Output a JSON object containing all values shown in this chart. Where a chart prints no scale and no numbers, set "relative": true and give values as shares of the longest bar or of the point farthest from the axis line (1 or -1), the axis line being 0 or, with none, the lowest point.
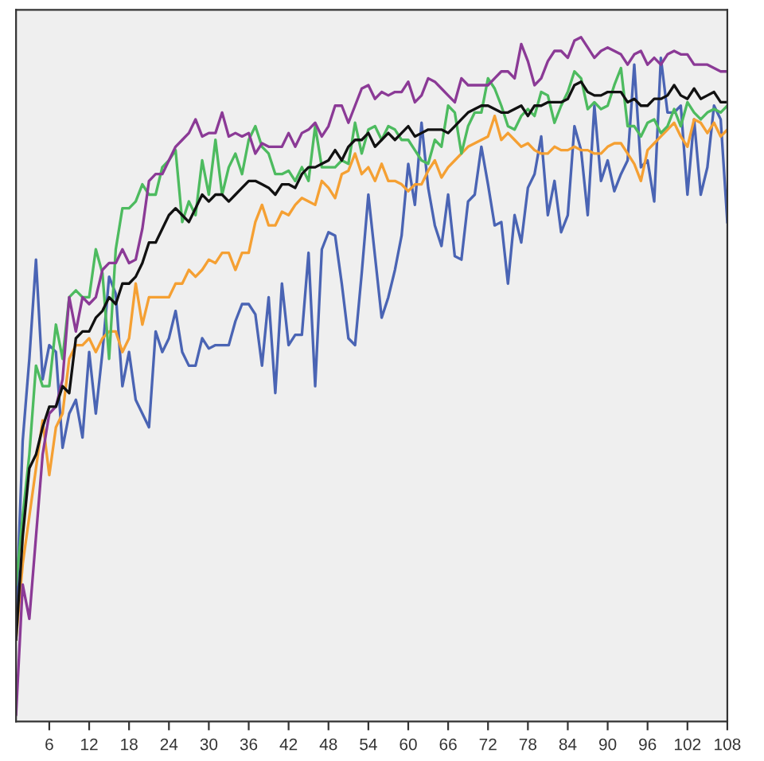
{
  "chart_data": {
    "type": "line",
    "relative": true,
    "grid": false,
    "marker": "none",
    "line_style": "solid",
    "x": [
      1,
      2,
      3,
      4,
      5,
      6,
      7,
      8,
      9,
      10,
      11,
      12,
      13,
      14,
      15,
      16,
      17,
      18,
      19,
      20,
      21,
      22,
      23,
      24,
      25,
      26,
      27,
      28,
      29,
      30,
      31,
      32,
      33,
      34,
      35,
      36,
      37,
      38,
      39,
      40,
      41,
      42,
      43,
      44,
      45,
      46,
      47,
      48,
      49,
      50,
      51,
      52,
      53,
      54,
      55,
      56,
      57,
      58,
      59,
      60,
      61,
      62,
      63,
      64,
      65,
      66,
      67,
      68,
      69,
      70,
      71,
      72,
      73,
      74,
      75,
      76,
      77,
      78,
      79,
      80,
      81,
      82,
      83,
      84,
      85,
      86,
      87,
      88,
      89,
      90,
      91,
      92,
      93,
      94,
      95,
      96,
      97,
      98,
      99,
      100,
      101,
      102,
      103,
      104,
      105,
      106,
      107,
      108
    ],
    "xlim": [
      1,
      108
    ],
    "xticks": [
      6,
      12,
      18,
      24,
      30,
      36,
      42,
      48,
      54,
      60,
      66,
      72,
      78,
      84,
      90,
      96,
      102,
      108
    ],
    "series": [
      {
        "color": "#4a64b4",
        "values": [
          0.15,
          0.41,
          0.53,
          0.675,
          0.5,
          0.55,
          0.54,
          0.4,
          0.45,
          0.47,
          0.415,
          0.54,
          0.45,
          0.54,
          0.65,
          0.625,
          0.49,
          0.54,
          0.47,
          0.45,
          0.43,
          0.57,
          0.54,
          0.56,
          0.6,
          0.54,
          0.52,
          0.52,
          0.56,
          0.545,
          0.55,
          0.55,
          0.55,
          0.585,
          0.61,
          0.61,
          0.595,
          0.52,
          0.62,
          0.48,
          0.64,
          0.55,
          0.565,
          0.565,
          0.685,
          0.49,
          0.69,
          0.715,
          0.71,
          0.64,
          0.56,
          0.55,
          0.655,
          0.77,
          0.68,
          0.59,
          0.62,
          0.66,
          0.71,
          0.815,
          0.755,
          0.875,
          0.78,
          0.725,
          0.695,
          0.77,
          0.68,
          0.675,
          0.76,
          0.77,
          0.84,
          0.785,
          0.725,
          0.73,
          0.64,
          0.74,
          0.7,
          0.78,
          0.8,
          0.855,
          0.74,
          0.79,
          0.715,
          0.74,
          0.87,
          0.835,
          0.74,
          0.9,
          0.79,
          0.82,
          0.775,
          0.8,
          0.82,
          0.96,
          0.81,
          0.82,
          0.76,
          0.97,
          0.89,
          0.89,
          0.9,
          0.77,
          0.88,
          0.77,
          0.81,
          0.9,
          0.88,
          0.73
        ]
      },
      {
        "color": "#f5a033",
        "values": [
          0.12,
          0.23,
          0.3,
          0.37,
          0.44,
          0.36,
          0.43,
          0.45,
          0.53,
          0.55,
          0.55,
          0.56,
          0.54,
          0.56,
          0.57,
          0.57,
          0.54,
          0.56,
          0.64,
          0.58,
          0.62,
          0.62,
          0.62,
          0.62,
          0.64,
          0.64,
          0.66,
          0.65,
          0.66,
          0.675,
          0.67,
          0.685,
          0.685,
          0.66,
          0.685,
          0.685,
          0.73,
          0.755,
          0.725,
          0.725,
          0.745,
          0.74,
          0.755,
          0.765,
          0.76,
          0.755,
          0.79,
          0.78,
          0.765,
          0.8,
          0.805,
          0.83,
          0.8,
          0.81,
          0.79,
          0.815,
          0.79,
          0.79,
          0.785,
          0.775,
          0.785,
          0.785,
          0.805,
          0.82,
          0.795,
          0.81,
          0.82,
          0.83,
          0.84,
          0.845,
          0.85,
          0.855,
          0.885,
          0.85,
          0.86,
          0.85,
          0.84,
          0.845,
          0.835,
          0.83,
          0.83,
          0.84,
          0.835,
          0.835,
          0.84,
          0.835,
          0.835,
          0.83,
          0.83,
          0.84,
          0.845,
          0.845,
          0.83,
          0.815,
          0.79,
          0.835,
          0.845,
          0.855,
          0.865,
          0.875,
          0.855,
          0.84,
          0.88,
          0.875,
          0.86,
          0.875,
          0.855,
          0.865
        ]
      },
      {
        "color": "#4dbb5f",
        "values": [
          0.2,
          0.3,
          0.39,
          0.52,
          0.49,
          0.49,
          0.58,
          0.53,
          0.62,
          0.63,
          0.62,
          0.62,
          0.69,
          0.655,
          0.53,
          0.69,
          0.75,
          0.75,
          0.76,
          0.785,
          0.77,
          0.77,
          0.81,
          0.82,
          0.835,
          0.73,
          0.76,
          0.74,
          0.82,
          0.77,
          0.85,
          0.77,
          0.81,
          0.83,
          0.8,
          0.85,
          0.87,
          0.84,
          0.83,
          0.8,
          0.8,
          0.805,
          0.79,
          0.81,
          0.79,
          0.87,
          0.81,
          0.81,
          0.81,
          0.82,
          0.815,
          0.875,
          0.83,
          0.865,
          0.87,
          0.85,
          0.87,
          0.865,
          0.85,
          0.85,
          0.835,
          0.82,
          0.815,
          0.85,
          0.84,
          0.9,
          0.89,
          0.83,
          0.87,
          0.89,
          0.89,
          0.94,
          0.925,
          0.9,
          0.87,
          0.865,
          0.885,
          0.895,
          0.885,
          0.92,
          0.915,
          0.875,
          0.9,
          0.92,
          0.95,
          0.94,
          0.895,
          0.905,
          0.895,
          0.9,
          0.93,
          0.955,
          0.87,
          0.87,
          0.855,
          0.875,
          0.88,
          0.86,
          0.87,
          0.895,
          0.87,
          0.905,
          0.89,
          0.88,
          0.89,
          0.895,
          0.89,
          0.9
        ]
      },
      {
        "color": "#8b3a96",
        "values": [
          0.01,
          0.2,
          0.15,
          0.27,
          0.39,
          0.45,
          0.46,
          0.5,
          0.62,
          0.57,
          0.62,
          0.61,
          0.62,
          0.66,
          0.67,
          0.67,
          0.69,
          0.67,
          0.675,
          0.72,
          0.79,
          0.8,
          0.8,
          0.82,
          0.84,
          0.85,
          0.86,
          0.88,
          0.855,
          0.86,
          0.86,
          0.89,
          0.855,
          0.86,
          0.855,
          0.86,
          0.83,
          0.845,
          0.84,
          0.84,
          0.84,
          0.86,
          0.84,
          0.86,
          0.865,
          0.875,
          0.855,
          0.87,
          0.9,
          0.9,
          0.875,
          0.9,
          0.925,
          0.93,
          0.91,
          0.92,
          0.915,
          0.92,
          0.92,
          0.935,
          0.905,
          0.915,
          0.94,
          0.935,
          0.925,
          0.915,
          0.905,
          0.94,
          0.93,
          0.93,
          0.93,
          0.93,
          0.94,
          0.95,
          0.95,
          0.94,
          0.99,
          0.965,
          0.93,
          0.94,
          0.965,
          0.98,
          0.98,
          0.97,
          0.995,
          1.0,
          0.985,
          0.97,
          0.98,
          0.985,
          0.98,
          0.975,
          0.96,
          0.975,
          0.98,
          0.96,
          0.97,
          0.96,
          0.975,
          0.98,
          0.975,
          0.975,
          0.96,
          0.96,
          0.96,
          0.955,
          0.95,
          0.95
        ]
      },
      {
        "color": "#111111",
        "values": [
          0.12,
          0.27,
          0.37,
          0.39,
          0.43,
          0.46,
          0.46,
          0.49,
          0.48,
          0.56,
          0.57,
          0.57,
          0.59,
          0.6,
          0.62,
          0.61,
          0.64,
          0.64,
          0.65,
          0.67,
          0.7,
          0.7,
          0.72,
          0.74,
          0.75,
          0.74,
          0.73,
          0.75,
          0.77,
          0.76,
          0.77,
          0.77,
          0.76,
          0.77,
          0.78,
          0.79,
          0.79,
          0.785,
          0.78,
          0.77,
          0.785,
          0.785,
          0.78,
          0.8,
          0.81,
          0.81,
          0.815,
          0.82,
          0.835,
          0.82,
          0.84,
          0.85,
          0.85,
          0.86,
          0.84,
          0.85,
          0.86,
          0.85,
          0.86,
          0.87,
          0.855,
          0.86,
          0.865,
          0.865,
          0.865,
          0.86,
          0.87,
          0.88,
          0.89,
          0.895,
          0.9,
          0.9,
          0.895,
          0.89,
          0.89,
          0.895,
          0.9,
          0.885,
          0.9,
          0.9,
          0.905,
          0.905,
          0.905,
          0.91,
          0.93,
          0.935,
          0.92,
          0.915,
          0.915,
          0.92,
          0.92,
          0.92,
          0.905,
          0.91,
          0.9,
          0.9,
          0.91,
          0.91,
          0.915,
          0.93,
          0.915,
          0.91,
          0.925,
          0.91,
          0.915,
          0.92,
          0.905,
          0.905
        ]
      }
    ]
  }
}
